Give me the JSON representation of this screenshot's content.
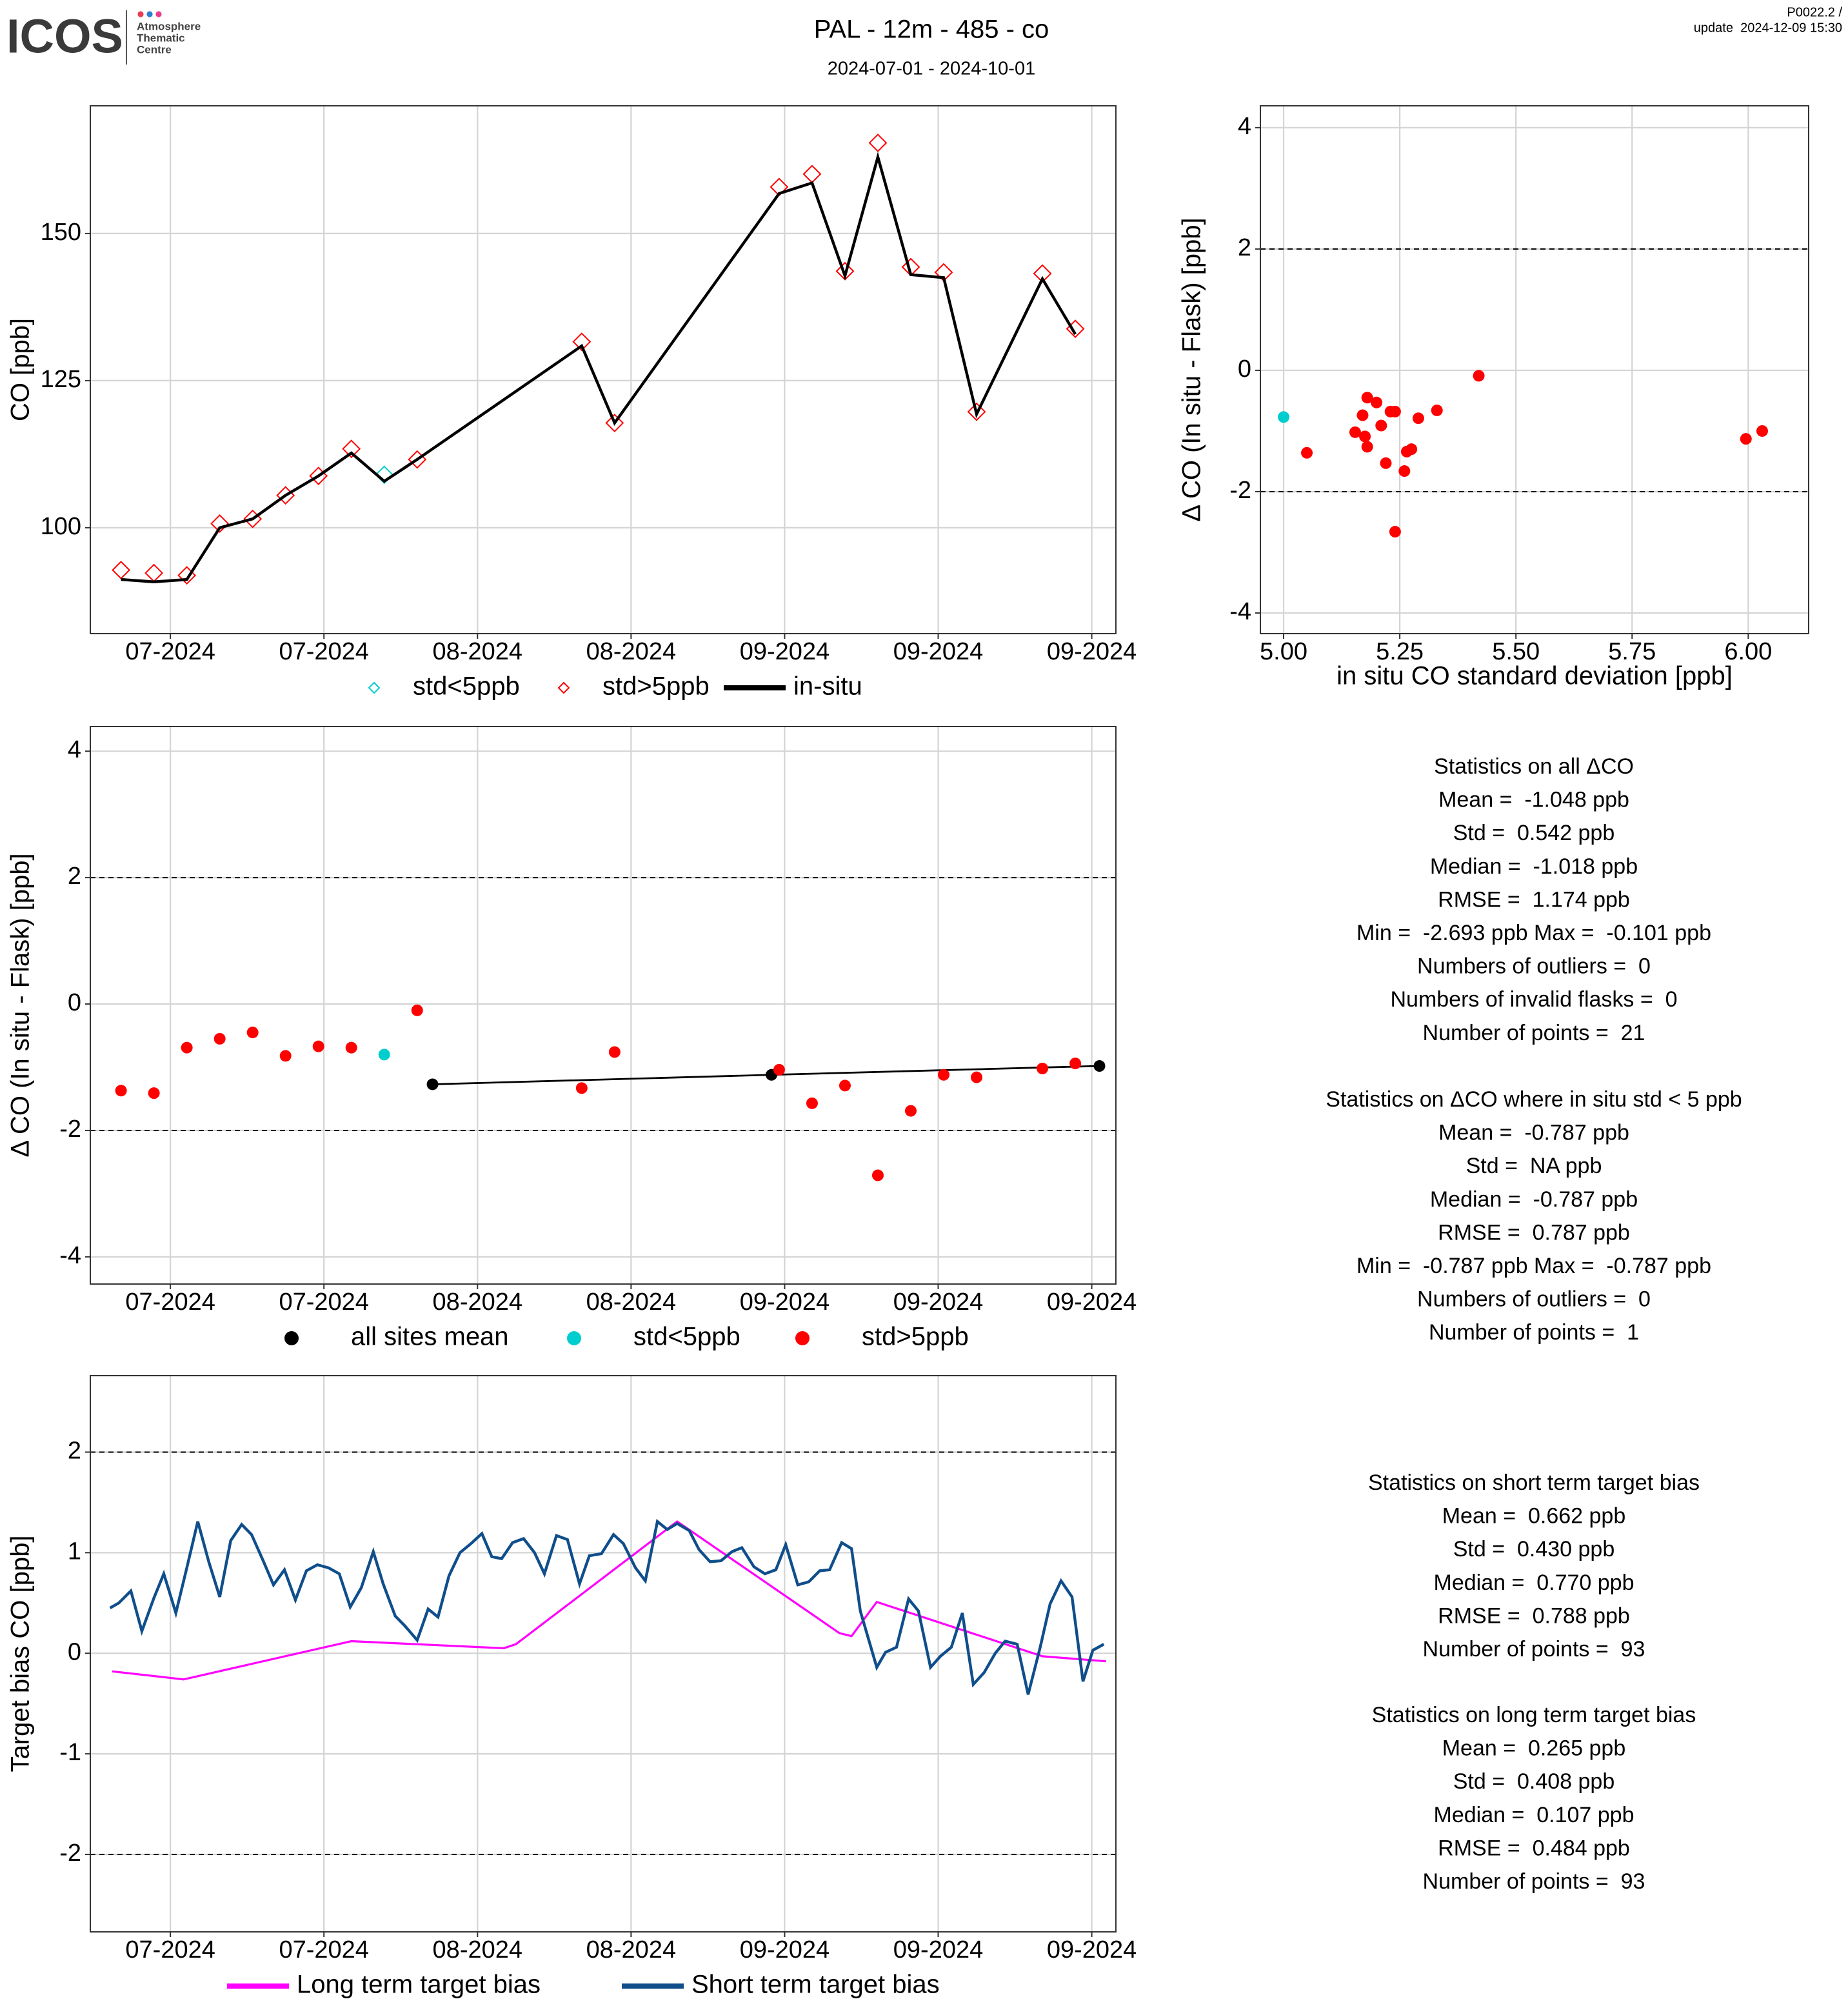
{
  "header": {
    "logo": "ICOS",
    "centre": [
      "Atmosphere",
      "Thematic",
      "Centre"
    ],
    "title": "PAL - 12m - 485 - co",
    "subtitle": "2024-07-01 - 2024-10-01",
    "version": "P0022.2 /",
    "update": "update  2024-12-09 15:30"
  },
  "chart_data": [
    {
      "type": "line",
      "ylabel": "CO [ppb]",
      "xlim": [
        -0.3,
        93.2
      ],
      "ylim": [
        82.0,
        171.7
      ],
      "yticks": [
        100,
        125,
        150
      ],
      "xticks": [
        {
          "value": 7,
          "label": "07-2024"
        },
        {
          "value": 21,
          "label": "07-2024"
        },
        {
          "value": 35,
          "label": "08-2024"
        },
        {
          "value": 49,
          "label": "08-2024"
        },
        {
          "value": 63,
          "label": "09-2024"
        },
        {
          "value": 77,
          "label": "09-2024"
        },
        {
          "value": 91,
          "label": "09-2024"
        }
      ],
      "grid": true,
      "legend": "bottom",
      "series": [
        {
          "name": "std<5ppb",
          "color": "#00cdcd",
          "style": "diamond",
          "x": [
            26.5
          ],
          "values": [
            109.0
          ]
        },
        {
          "name": "std>5ppb",
          "color": "#ff0000",
          "style": "diamond",
          "x": [
            2.5,
            5.5,
            8.5,
            11.5,
            14.5,
            17.5,
            20.5,
            23.5,
            29.5,
            44.5,
            47.5,
            62.5,
            65.5,
            68.5,
            71.5,
            74.5,
            77.5,
            80.5,
            86.5,
            89.5
          ],
          "values": [
            92.8,
            92.3,
            91.9,
            100.7,
            101.5,
            105.5,
            108.8,
            113.4,
            111.6,
            131.6,
            117.8,
            157.9,
            160.1,
            143.6,
            165.4,
            144.3,
            143.4,
            119.7,
            143.2,
            133.8
          ]
        },
        {
          "name": "in-situ",
          "color": "#000000",
          "style": "line",
          "x": [
            2.5,
            5.5,
            8.5,
            11.5,
            14.5,
            17.5,
            20.5,
            23.5,
            26.5,
            29.5,
            44.5,
            47.5,
            62.5,
            65.5,
            68.5,
            71.5,
            74.5,
            77.5,
            80.5,
            86.5,
            89.5
          ],
          "values": [
            91.2,
            90.8,
            91.2,
            100.0,
            101.5,
            105.5,
            108.8,
            112.7,
            107.9,
            111.6,
            130.9,
            117.8,
            156.8,
            158.6,
            142.8,
            163.0,
            143.0,
            142.5,
            119.3,
            142.3,
            132.9
          ]
        }
      ]
    },
    {
      "type": "scatter",
      "xlabel": "in situ CO standard deviation [ppb]",
      "ylabel": "Δ CO (In situ - Flask) [ppb]",
      "xlim": [
        4.95,
        6.13
      ],
      "ylim": [
        -4.34,
        4.36
      ],
      "xticks": [
        {
          "value": 5,
          "label": "5.00"
        },
        {
          "value": 5.25,
          "label": "5.25"
        },
        {
          "value": 5.5,
          "label": "5.50"
        },
        {
          "value": 5.75,
          "label": "5.75"
        },
        {
          "value": 6,
          "label": "6.00"
        }
      ],
      "yticks": [
        -4,
        -2,
        0,
        2,
        4
      ],
      "hlines": [
        -2,
        2
      ],
      "grid": true,
      "series": [
        {
          "color": "#00cdcd",
          "style": "dot",
          "x": [
            5.0
          ],
          "values": [
            -0.77
          ]
        },
        {
          "color": "#ff0000",
          "style": "dot",
          "x": [
            5.05,
            5.154,
            5.17,
            5.18,
            5.175,
            5.18,
            5.2,
            5.21,
            5.22,
            5.23,
            5.24,
            5.24,
            5.26,
            5.265,
            5.275,
            5.29,
            5.33,
            5.42,
            5.995,
            6.03
          ],
          "values": [
            -1.36,
            -1.02,
            -0.74,
            -0.45,
            -1.09,
            -1.26,
            -0.53,
            -0.91,
            -1.53,
            -0.68,
            -0.68,
            -2.66,
            -1.66,
            -1.34,
            -1.3,
            -0.79,
            -0.66,
            -0.09,
            -1.13,
            -1.0
          ]
        }
      ]
    },
    {
      "type": "scatter",
      "ylabel": "Δ CO (In situ - Flask) [ppb]",
      "xlim": [
        -0.3,
        93.2
      ],
      "ylim": [
        -4.43,
        4.39
      ],
      "yticks": [
        -4,
        -2,
        0,
        2,
        4
      ],
      "xticks": [
        {
          "value": 7,
          "label": "07-2024"
        },
        {
          "value": 21,
          "label": "07-2024"
        },
        {
          "value": 35,
          "label": "08-2024"
        },
        {
          "value": 49,
          "label": "08-2024"
        },
        {
          "value": 63,
          "label": "09-2024"
        },
        {
          "value": 77,
          "label": "09-2024"
        },
        {
          "value": 91,
          "label": "09-2024"
        }
      ],
      "hlines": [
        -2,
        2
      ],
      "grid": true,
      "legend": "bottom",
      "series": [
        {
          "name": "all sites mean",
          "color": "#000000",
          "style": "linedot",
          "x": [
            30.9,
            61.8,
            91.7
          ],
          "values": [
            -1.27,
            -1.12,
            -0.98
          ]
        },
        {
          "name": "std<5ppb",
          "color": "#00cdcd",
          "style": "dot",
          "x": [
            26.5
          ],
          "values": [
            -0.8
          ]
        },
        {
          "name": "std>5ppb",
          "color": "#ff0000",
          "style": "dot",
          "x": [
            2.5,
            5.5,
            8.5,
            11.5,
            14.5,
            17.5,
            20.5,
            23.5,
            29.5,
            44.5,
            47.5,
            62.5,
            65.5,
            68.5,
            71.5,
            74.5,
            77.5,
            80.5,
            86.5,
            89.5
          ],
          "values": [
            -1.37,
            -1.41,
            -0.69,
            -0.55,
            -0.45,
            -0.82,
            -0.67,
            -0.69,
            -0.1,
            -1.33,
            -0.76,
            -1.04,
            -1.57,
            -1.29,
            -2.71,
            -1.69,
            -1.12,
            -1.16,
            -1.02,
            -0.94
          ]
        }
      ]
    },
    {
      "type": "line",
      "ylabel": "Target bias CO [ppb]",
      "xlim": [
        -0.3,
        93.2
      ],
      "ylim": [
        -2.77,
        2.76
      ],
      "yticks": [
        -2,
        -1,
        0,
        1,
        2
      ],
      "xticks": [
        {
          "value": 7,
          "label": "07-2024"
        },
        {
          "value": 21,
          "label": "07-2024"
        },
        {
          "value": 35,
          "label": "08-2024"
        },
        {
          "value": 49,
          "label": "08-2024"
        },
        {
          "value": 63,
          "label": "09-2024"
        },
        {
          "value": 77,
          "label": "09-2024"
        },
        {
          "value": 91,
          "label": "09-2024"
        }
      ],
      "hlines": [
        -2,
        2
      ],
      "grid": true,
      "legend": "bottom",
      "series": [
        {
          "name": "Long term target bias",
          "color": "#ff00ff",
          "style": "line",
          "x": [
            1.7,
            8.2,
            23.5,
            37.4,
            38.5,
            53.2,
            68.0,
            69.1,
            71.4,
            86.5,
            92.3
          ],
          "values": [
            -0.18,
            -0.26,
            0.12,
            0.05,
            0.09,
            1.31,
            0.2,
            0.17,
            0.51,
            -0.03,
            -0.08
          ]
        },
        {
          "name": "Short term target bias",
          "color": "#104e8b",
          "style": "line",
          "x": [
            1.5,
            2.3,
            3.4,
            4.4,
            5.5,
            6.4,
            7.5,
            8.5,
            9.5,
            10.5,
            11.5,
            12.5,
            13.5,
            14.4,
            15.5,
            16.4,
            17.4,
            18.4,
            19.4,
            20.4,
            21.4,
            22.4,
            23.4,
            24.4,
            25.5,
            26.4,
            27.5,
            28.4,
            29.5,
            30.5,
            31.4,
            32.4,
            33.4,
            34.4,
            35.4,
            36.3,
            37.2,
            38.2,
            39.2,
            40.2,
            41.1,
            42.2,
            43.2,
            44.3,
            45.2,
            46.3,
            47.4,
            48.3,
            49.4,
            50.3,
            51.4,
            52.3,
            53.2,
            54.3,
            55.2,
            56.2,
            57.2,
            58.2,
            59.1,
            60.2,
            61.2,
            62.2,
            63.1,
            64.2,
            65.2,
            66.2,
            67.1,
            68.2,
            69.1,
            69.9,
            71.4,
            72.2,
            73.2,
            74.3,
            75.2,
            76.3,
            77.2,
            78.2,
            79.2,
            80.2,
            81.2,
            82.2,
            83.1,
            84.2,
            85.2,
            86.3,
            87.2,
            88.2,
            89.2,
            90.2,
            91.1,
            92.1
          ],
          "values": [
            0.45,
            0.5,
            0.62,
            0.22,
            0.55,
            0.79,
            0.4,
            0.85,
            1.31,
            0.91,
            0.56,
            1.12,
            1.28,
            1.18,
            0.91,
            0.68,
            0.83,
            0.53,
            0.82,
            0.88,
            0.85,
            0.79,
            0.46,
            0.65,
            1.01,
            0.69,
            0.37,
            0.27,
            0.13,
            0.44,
            0.36,
            0.77,
            1.0,
            1.09,
            1.19,
            0.96,
            0.94,
            1.1,
            1.14,
            1.0,
            0.79,
            1.17,
            1.13,
            0.69,
            0.97,
            0.99,
            1.18,
            1.09,
            0.85,
            0.72,
            1.31,
            1.23,
            1.29,
            1.22,
            1.03,
            0.91,
            0.92,
            1.01,
            1.05,
            0.86,
            0.79,
            0.83,
            1.08,
            0.68,
            0.71,
            0.82,
            0.83,
            1.1,
            1.04,
            0.42,
            -0.14,
            0.01,
            0.06,
            0.54,
            0.42,
            -0.14,
            -0.03,
            0.06,
            0.4,
            -0.31,
            -0.19,
            0.0,
            0.12,
            0.09,
            -0.41,
            0.06,
            0.49,
            0.72,
            0.56,
            -0.28,
            0.03,
            0.09
          ]
        }
      ]
    }
  ],
  "stats": [
    {
      "lines": [
        "Statistics on all ΔCO",
        "Mean =  -1.048 ppb",
        "Std =  0.542 ppb",
        "Median =  -1.018 ppb",
        "RMSE =  1.174 ppb",
        "Min =  -2.693 ppb Max =  -0.101 ppb",
        "Numbers of outliers =  0",
        "Numbers of invalid flasks =  0",
        "Number of points =  21"
      ]
    },
    {
      "lines": [
        "Statistics on ΔCO where in situ std < 5 ppb",
        "Mean =  -0.787 ppb",
        "Std =  NA ppb",
        "Median =  -0.787 ppb",
        "RMSE =  0.787 ppb",
        "Min =  -0.787 ppb Max =  -0.787 ppb",
        "Numbers of outliers =  0",
        "Number of points =  1"
      ]
    },
    {
      "lines": [
        "Statistics on short term target bias",
        "Mean =  0.662 ppb",
        "Std =  0.430 ppb",
        "Median =  0.770 ppb",
        "RMSE =  0.788 ppb",
        "Number of points =  93"
      ]
    },
    {
      "lines": [
        "Statistics on long term target bias",
        "Mean =  0.265 ppb",
        "Std =  0.408 ppb",
        "Median =  0.107 ppb",
        "RMSE =  0.484 ppb",
        "Number of points =  93"
      ]
    }
  ]
}
